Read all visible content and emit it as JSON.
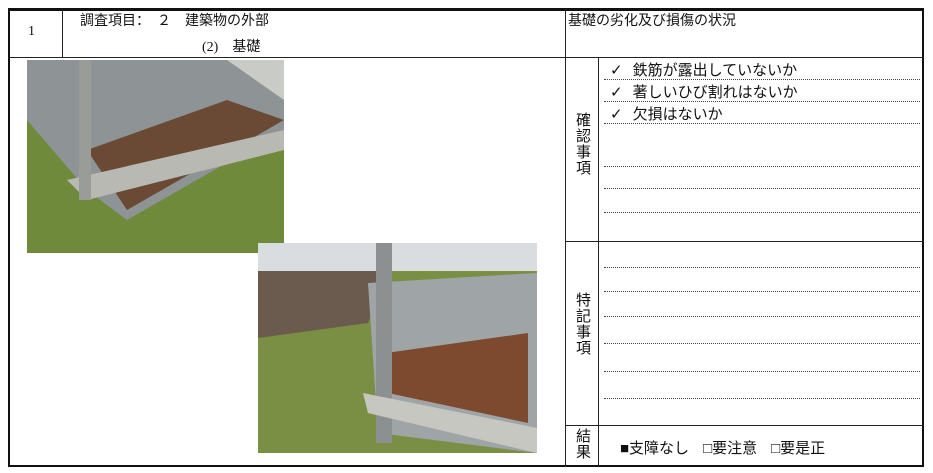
{
  "header": {
    "number": "1",
    "item_line1": "調査項目：　２　建築物の外部",
    "item_line2": "(2)　基礎",
    "topic": "基礎の劣化及び損傷の状況"
  },
  "check": {
    "label": "確認事項",
    "items": [
      {
        "mark": "✓",
        "text": "鉄筋が露出していないか"
      },
      {
        "mark": "✓",
        "text": "著しいひび割れはないか"
      },
      {
        "mark": "✓",
        "text": "欠損はないか"
      }
    ]
  },
  "special": {
    "label": "特記事項"
  },
  "result": {
    "label": "結果",
    "options": [
      "■支障なし",
      "□要注意",
      "□要是正"
    ]
  }
}
